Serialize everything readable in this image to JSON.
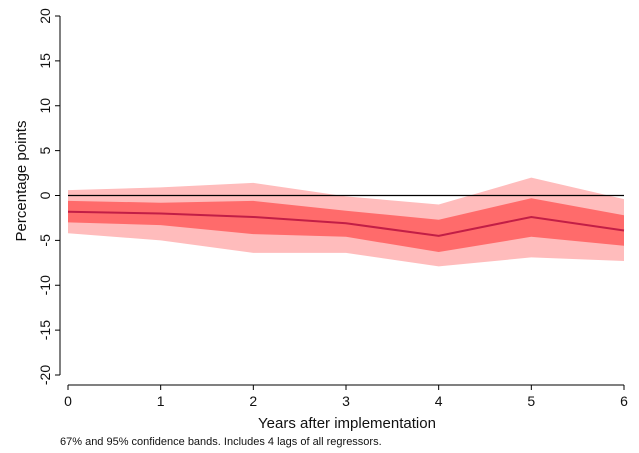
{
  "chart_data": {
    "type": "line",
    "title": "",
    "xlabel": "Years after implementation",
    "ylabel": "Percentage points",
    "note": "67% and 95% confidence bands. Includes 4 lags of all regressors.",
    "x": [
      0,
      1,
      2,
      3,
      4,
      5,
      6
    ],
    "xlim": [
      0,
      6
    ],
    "ylim": [
      -20,
      20
    ],
    "x_ticks": [
      0,
      1,
      2,
      3,
      4,
      5,
      6
    ],
    "y_ticks": [
      -20,
      -15,
      -10,
      -5,
      0,
      5,
      10,
      15,
      20
    ],
    "grid": false,
    "reference_line": 0,
    "series": [
      {
        "values": [
          -1.8,
          -2.0,
          -2.4,
          -3.1,
          -4.5,
          -2.4,
          -3.9
        ],
        "band_67_lower": [
          -3.0,
          -3.3,
          -4.3,
          -4.6,
          -6.3,
          -4.6,
          -5.6
        ],
        "band_67_upper": [
          -0.6,
          -0.8,
          -0.6,
          -1.7,
          -2.7,
          -0.3,
          -2.2
        ],
        "band_95_lower": [
          -4.2,
          -5.0,
          -6.4,
          -6.4,
          -7.9,
          -6.9,
          -7.3
        ],
        "band_95_upper": [
          0.6,
          0.9,
          1.4,
          -0.1,
          -1.0,
          2.0,
          -0.4
        ]
      }
    ],
    "colors": {
      "line": "#c21e46",
      "band_67": "#ff6b6b",
      "band_95": "#ffbcbc",
      "zero_line": "#000000"
    }
  }
}
